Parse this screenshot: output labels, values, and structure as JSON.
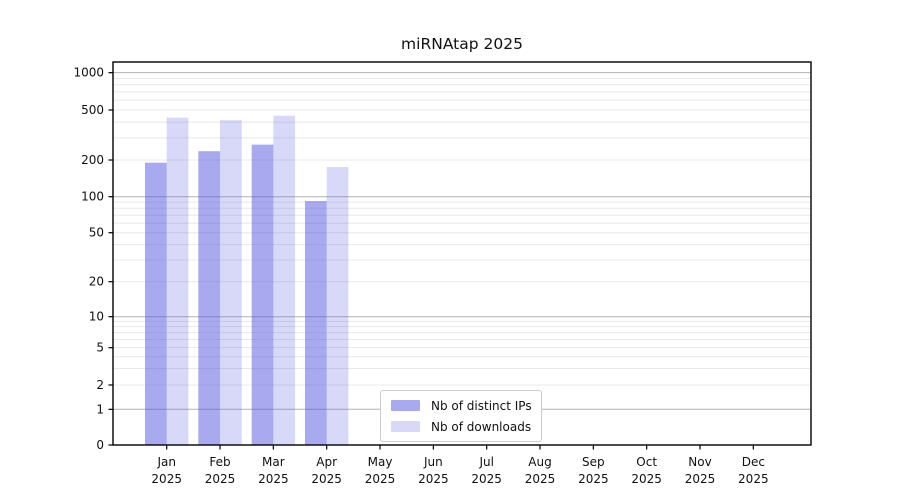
{
  "window": {
    "background": "#ffffff"
  },
  "chart_data": {
    "type": "bar",
    "title": "miRNAtap 2025",
    "categories": [
      "Jan",
      "Feb",
      "Mar",
      "Apr",
      "May",
      "Jun",
      "Jul",
      "Aug",
      "Sep",
      "Oct",
      "Nov",
      "Dec"
    ],
    "category_year": "2025",
    "series": [
      {
        "name": "Nb of distinct IPs",
        "color": "#a9a9f0",
        "values": [
          190,
          235,
          265,
          92,
          null,
          null,
          null,
          null,
          null,
          null,
          null,
          null
        ]
      },
      {
        "name": "Nb of downloads",
        "color": "#d8d8f8",
        "values": [
          435,
          415,
          450,
          175,
          null,
          null,
          null,
          null,
          null,
          null,
          null,
          null
        ]
      }
    ],
    "y_ticks": [
      0,
      1,
      2,
      5,
      10,
      20,
      50,
      100,
      200,
      500,
      1000
    ],
    "y_axis_scale": "log-like",
    "ylim": [
      0,
      1000
    ],
    "xlabel": "",
    "ylabel": "",
    "grid": "horizontal",
    "legend_position": "inside-bottom-center"
  },
  "colors": {
    "major_grid": "#b2b2b2",
    "minor_grid": "#e8e8e8",
    "axis": "#000000",
    "tick_text": "#111111",
    "bar_base": "#5b5be2",
    "bar_opacities": [
      0.525,
      0.235
    ],
    "legend_border": "#cccccc"
  }
}
